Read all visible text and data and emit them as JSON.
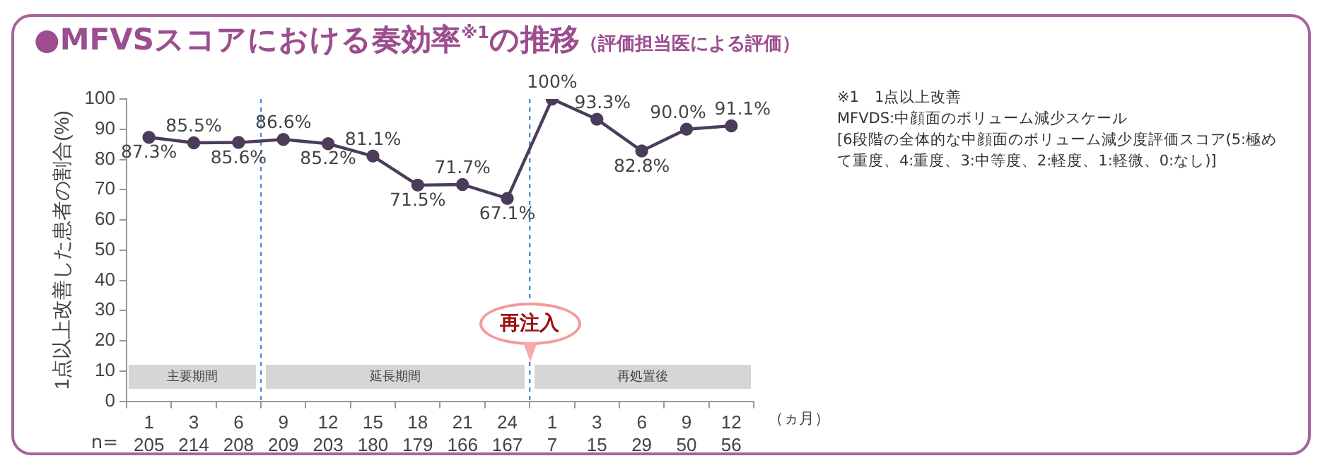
{
  "chart_data": {
    "type": "line",
    "title": "●MFVSスコアにおける奏効率$^{※1}$の推移",
    "subtitle": "（評価担当医による評価）",
    "ylabel": "1点以上改善した患者の割合(%)",
    "xlabel": "（ヵ月）",
    "categories": [
      "1\n205",
      "3\n214",
      "6\n208",
      "9\n209",
      "12\n203",
      "15\n180",
      "18\n179",
      "21\n166",
      "24\n167",
      "1\n7",
      "3\n15",
      "6\n29",
      "9\n50",
      "12\n56"
    ],
    "series": [
      {
        "color": "#4b3d5a",
        "values": [
          87.3,
          85.5,
          85.6,
          86.6,
          85.2,
          81.1,
          71.5,
          71.7,
          67.1,
          100,
          93.3,
          82.8,
          90.0,
          91.1
        ],
        "value_labels": [
          "87.3%",
          "85.5%",
          "85.6%",
          "86.6%",
          "85.2%",
          "81.1%",
          "71.5%",
          "71.7%",
          "67.1%",
          "100%",
          "93.3%",
          "82.8%",
          "90.0%",
          "91.1%"
        ]
      }
    ],
    "ylim": [
      0,
      100
    ],
    "yticks": [
      0,
      10,
      20,
      30,
      40,
      50,
      60,
      70,
      80,
      90,
      100
    ],
    "grid": false,
    "legend": false,
    "marker": "circle",
    "line_style": "solid",
    "annotations": [
      "再注入",
      "n=",
      "主要期間",
      "延長期間",
      "再処置後",
      "※1　1点以上改善",
      "MFVDS:中顔面のボリューム減少スケール",
      "[6段階の全体的な中顔面のボリューム減少度評価スコア(5:極めて重度、4:重度、3:中等度、2:軽度、1:軽微、0:なし)]"
    ]
  }
}
